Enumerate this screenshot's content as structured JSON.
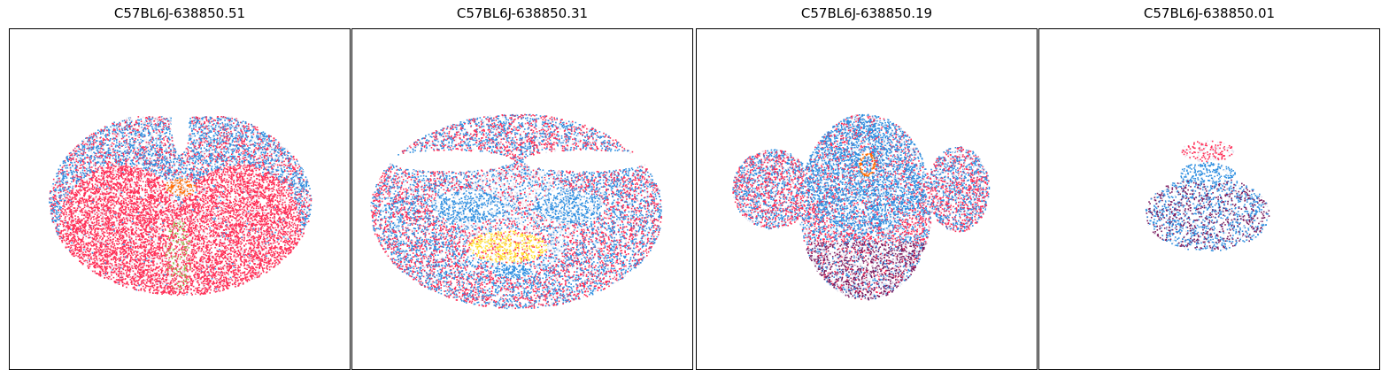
{
  "chart_data": [
    {
      "type": "scatter",
      "title": "C57BL6J-638850.51",
      "xlabel": "",
      "ylabel": "",
      "grid": false,
      "ticks": false,
      "legend": "none",
      "colors": [
        "#ff2d55",
        "#2f8fe0",
        "#e8e8f2",
        "#8fbf4a",
        "#ff6a00"
      ]
    },
    {
      "type": "scatter",
      "title": "C57BL6J-638850.31",
      "xlabel": "",
      "ylabel": "",
      "grid": false,
      "ticks": false,
      "legend": "none",
      "colors": [
        "#ff2d55",
        "#2f8fe0",
        "#ffe033",
        "#e8e8f2"
      ]
    },
    {
      "type": "scatter",
      "title": "C57BL6J-638850.19",
      "xlabel": "",
      "ylabel": "",
      "grid": false,
      "ticks": false,
      "legend": "none",
      "colors": [
        "#2f8fe0",
        "#ff2d55",
        "#7a1a5c",
        "#ff6a00",
        "#e8e8f2"
      ]
    },
    {
      "type": "scatter",
      "title": "C57BL6J-638850.01",
      "xlabel": "",
      "ylabel": "",
      "grid": false,
      "ticks": false,
      "legend": "none",
      "colors": [
        "#2f8fe0",
        "#7a1a5c",
        "#ff2d55",
        "#e8e8f2"
      ]
    }
  ]
}
